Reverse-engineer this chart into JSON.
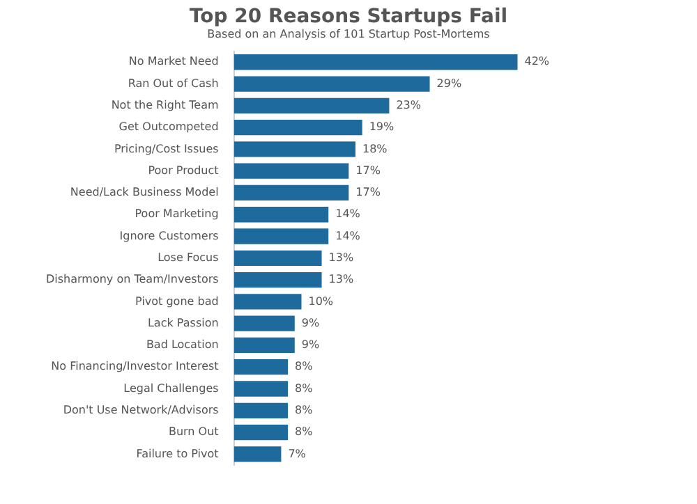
{
  "chart_data": {
    "type": "bar",
    "orientation": "horizontal",
    "title": "Top 20 Reasons Startups Fail",
    "subtitle": "Based on an Analysis of 101 Startup Post-Mortems",
    "categories": [
      "No Market Need",
      "Ran Out of Cash",
      "Not the Right Team",
      "Get Outcompeted",
      "Pricing/Cost Issues",
      "Poor Product",
      "Need/Lack Business Model",
      "Poor Marketing",
      "Ignore Customers",
      "Lose Focus",
      "Disharmony on Team/Investors",
      "Pivot gone bad",
      "Lack Passion",
      "Bad Location",
      "No Financing/Investor Interest",
      "Legal Challenges",
      "Don't Use Network/Advisors",
      "Burn Out",
      "Failure to Pivot"
    ],
    "values": [
      42,
      29,
      23,
      19,
      18,
      17,
      17,
      14,
      14,
      13,
      13,
      10,
      9,
      9,
      8,
      8,
      8,
      8,
      7
    ],
    "value_labels": [
      "42%",
      "29%",
      "23%",
      "19%",
      "18%",
      "17%",
      "17%",
      "14%",
      "14%",
      "13%",
      "13%",
      "10%",
      "9%",
      "9%",
      "8%",
      "8%",
      "8%",
      "8%",
      "7%"
    ],
    "color": "#1f6a9c",
    "tick_labels": "y"
  }
}
